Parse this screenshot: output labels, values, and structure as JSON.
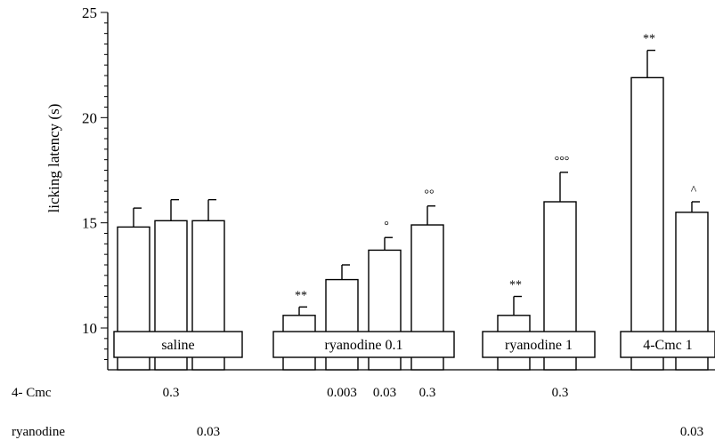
{
  "chart_data": {
    "type": "bar",
    "ylabel": "licking latency (s)",
    "xlabel": "",
    "ylim": [
      8,
      25
    ],
    "y_ticks": [
      10,
      15,
      20,
      25
    ],
    "groups": [
      {
        "label": "saline",
        "bars": [
          {
            "value": 14.8,
            "error": 0.9,
            "annotation": ""
          },
          {
            "value": 15.1,
            "error": 1.0,
            "annotation": ""
          },
          {
            "value": 15.1,
            "error": 1.0,
            "annotation": ""
          }
        ]
      },
      {
        "label": "ryanodine 0.1",
        "bars": [
          {
            "value": 10.6,
            "error": 0.4,
            "annotation": "**"
          },
          {
            "value": 12.3,
            "error": 0.7,
            "annotation": ""
          },
          {
            "value": 13.7,
            "error": 0.6,
            "annotation": "°"
          },
          {
            "value": 14.9,
            "error": 0.9,
            "annotation": "°°"
          }
        ]
      },
      {
        "label": "ryanodine 1",
        "bars": [
          {
            "value": 10.6,
            "error": 0.9,
            "annotation": "**"
          },
          {
            "value": 16.0,
            "error": 1.4,
            "annotation": "°°°"
          }
        ]
      },
      {
        "label": "4-Cmc 1",
        "bars": [
          {
            "value": 21.9,
            "error": 1.3,
            "annotation": "**"
          },
          {
            "value": 15.5,
            "error": 0.5,
            "annotation": "^"
          }
        ]
      }
    ],
    "row_labels": [
      {
        "label": "4- Cmc",
        "values": [
          {
            "text": "0.3",
            "group": 0,
            "bar": 1
          },
          {
            "text": "0.003",
            "group": 1,
            "bar": 1
          },
          {
            "text": "0.03",
            "group": 1,
            "bar": 2
          },
          {
            "text": "0.3",
            "group": 1,
            "bar": 3
          },
          {
            "text": "0.3",
            "group": 2,
            "bar": 1
          }
        ]
      },
      {
        "label": "ryanodine",
        "values": [
          {
            "text": "0.03",
            "group": 0,
            "bar": 2
          },
          {
            "text": "0.03",
            "group": 3,
            "bar": 1
          }
        ]
      }
    ]
  }
}
